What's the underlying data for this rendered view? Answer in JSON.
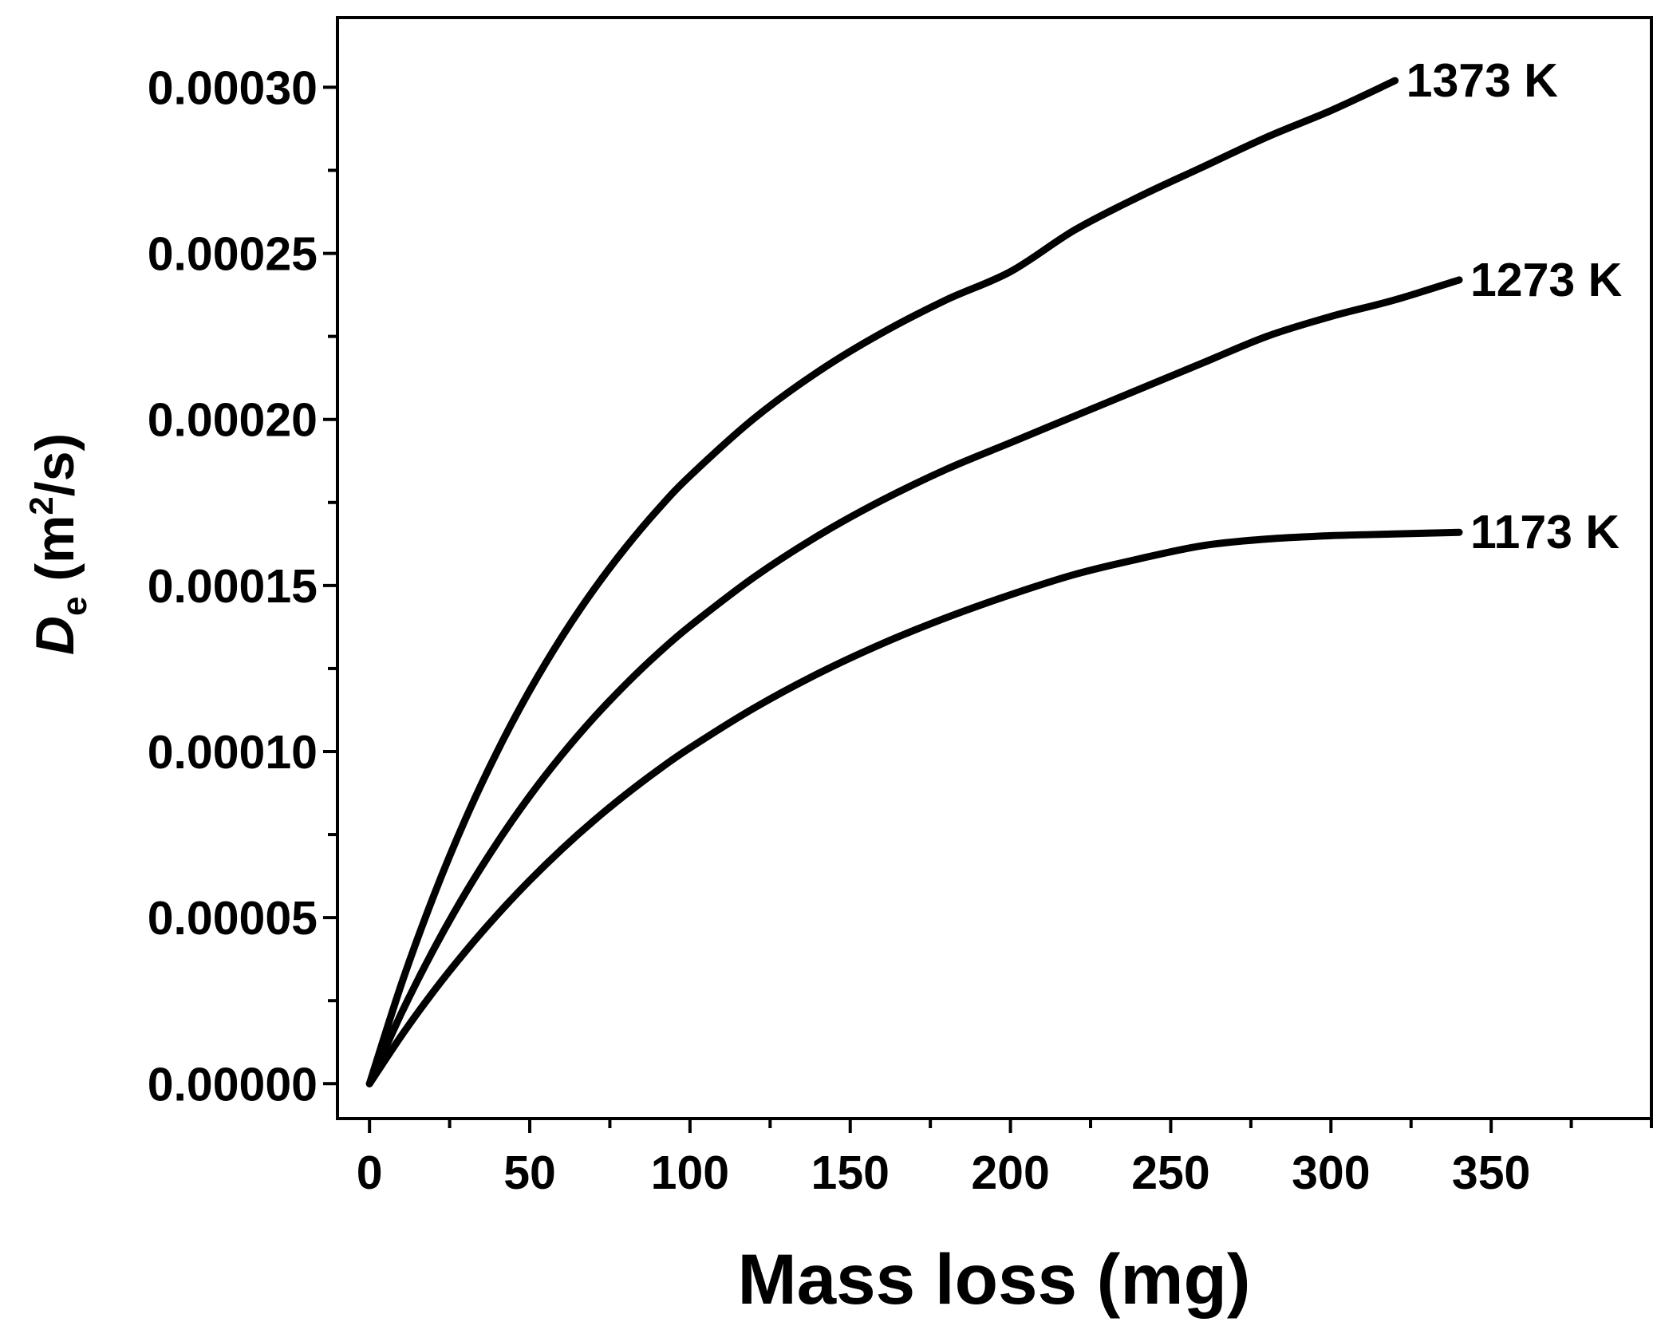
{
  "chart_data": {
    "type": "line",
    "title": "",
    "xlabel": "Mass loss (mg)",
    "ylabel": {
      "symbol": "D",
      "subscript": "e",
      "unit_prefix": "(m",
      "unit_power": "2",
      "unit_suffix": "/s)"
    },
    "xlim": [
      -10,
      400
    ],
    "ylim": [
      -1.05e-05,
      0.000321
    ],
    "xticks": [
      0,
      50,
      100,
      150,
      200,
      250,
      300,
      350
    ],
    "xtick_labels": [
      "0",
      "50",
      "100",
      "150",
      "200",
      "250",
      "300",
      "350"
    ],
    "yticks": [
      0.0,
      5e-05,
      0.0001,
      0.00015,
      0.0002,
      0.00025,
      0.0003
    ],
    "ytick_labels": [
      "0.00000",
      "0.00005",
      "0.00010",
      "0.00015",
      "0.00020",
      "0.00025",
      "0.00030"
    ],
    "grid": false,
    "legend": "none",
    "series": [
      {
        "name": "1373 K",
        "label": "1373 K",
        "color": "#000000",
        "x": [
          0,
          10,
          20,
          30,
          40,
          50,
          60,
          70,
          80,
          90,
          100,
          120,
          140,
          160,
          180,
          200,
          220,
          240,
          260,
          280,
          300,
          320
        ],
        "y": [
          0.0,
          3.01e-05,
          5.65e-05,
          7.98e-05,
          0.0001003,
          0.0001184,
          0.0001345,
          0.0001488,
          0.0001615,
          0.0001729,
          0.000183,
          0.0002003,
          0.0002144,
          0.0002261,
          0.000236,
          0.0002445,
          0.000257,
          0.000267,
          0.000276,
          0.000285,
          0.000293,
          0.000302
        ]
      },
      {
        "name": "1273 K",
        "label": "1273 K",
        "color": "#000000",
        "x": [
          0,
          10,
          20,
          30,
          40,
          50,
          60,
          70,
          80,
          90,
          100,
          120,
          140,
          160,
          180,
          200,
          220,
          240,
          260,
          280,
          300,
          320,
          340
        ],
        "y": [
          0.0,
          2.13e-05,
          4.04e-05,
          5.75e-05,
          7.28e-05,
          8.66e-05,
          9.9e-05,
          0.0001102,
          0.0001203,
          0.0001295,
          0.0001378,
          0.0001525,
          0.000165,
          0.0001757,
          0.000185,
          0.000193,
          0.000201,
          0.000209,
          0.000217,
          0.000225,
          0.000231,
          0.000236,
          0.000242
        ]
      },
      {
        "name": "1173 K",
        "label": "1173 K",
        "color": "#000000",
        "x": [
          0,
          10,
          20,
          30,
          40,
          50,
          60,
          70,
          80,
          90,
          100,
          120,
          140,
          160,
          180,
          200,
          220,
          240,
          260,
          280,
          300,
          320,
          340
        ],
        "y": [
          0.0,
          1.45e-05,
          2.78e-05,
          3.99e-05,
          5.1e-05,
          6.12e-05,
          7.06e-05,
          7.92e-05,
          8.71e-05,
          9.44e-05,
          0.0001011,
          0.0001131,
          0.0001235,
          0.0001325,
          0.0001403,
          0.0001472,
          0.0001533,
          0.000158,
          0.000162,
          0.000164,
          0.000165,
          0.0001655,
          0.000166
        ]
      }
    ]
  }
}
